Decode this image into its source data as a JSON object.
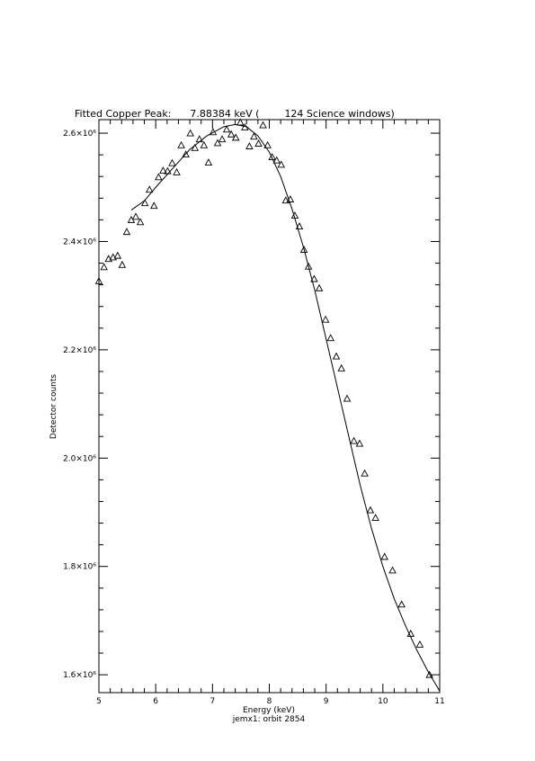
{
  "chart_data": {
    "type": "scatter",
    "title": "Fitted Copper Peak:      7.88384 keV (        124 Science windows)",
    "x_label": "Energy (keV)",
    "y_label": "Detector counts",
    "subtitle": "jemx1: orbit 2854",
    "xlim": [
      5,
      11
    ],
    "ylim": [
      1567000,
      2625000
    ],
    "xticks": [
      5,
      6,
      7,
      8,
      9,
      10,
      11
    ],
    "yticks": [
      {
        "value": 1600000,
        "label": "1.6×10⁶"
      },
      {
        "value": 1800000,
        "label": "1.8×10⁶"
      },
      {
        "value": 2000000,
        "label": "2.0×10⁶"
      },
      {
        "value": 2200000,
        "label": "2.2×10⁶"
      },
      {
        "value": 2400000,
        "label": "2.4×10⁶"
      },
      {
        "value": 2600000,
        "label": "2.6×10⁶"
      }
    ],
    "minor_divisions": 5,
    "color": "#000000",
    "points": {
      "x": [
        5.0,
        5.09,
        5.17,
        5.25,
        5.33,
        5.41,
        5.49,
        5.57,
        5.65,
        5.73,
        5.81,
        5.89,
        5.97,
        6.05,
        6.13,
        6.21,
        6.29,
        6.37,
        6.45,
        6.53,
        6.61,
        6.69,
        6.77,
        6.85,
        6.93,
        7.01,
        7.09,
        7.17,
        7.25,
        7.33,
        7.41,
        7.49,
        7.57,
        7.65,
        7.73,
        7.81,
        7.89,
        7.97,
        8.05,
        8.13,
        8.21,
        8.29,
        8.37,
        8.45,
        8.53,
        8.61,
        8.69,
        8.79,
        8.88,
        8.99,
        9.08,
        9.18,
        9.27,
        9.37,
        9.49,
        9.59,
        9.68,
        9.78,
        9.87,
        10.03,
        10.17,
        10.33,
        10.49,
        10.65,
        10.82
      ],
      "y": [
        2327000,
        2353000,
        2368000,
        2371000,
        2374000,
        2357000,
        2418000,
        2440000,
        2446000,
        2436000,
        2471000,
        2496000,
        2466000,
        2519000,
        2531000,
        2530000,
        2545000,
        2528000,
        2578000,
        2561000,
        2600000,
        2573000,
        2589000,
        2578000,
        2546000,
        2602000,
        2582000,
        2589000,
        2607000,
        2598000,
        2592000,
        2620000,
        2611000,
        2576000,
        2594000,
        2581000,
        2615000,
        2578000,
        2556000,
        2550000,
        2542000,
        2476000,
        2478000,
        2448000,
        2428000,
        2385000,
        2354000,
        2331000,
        2314000,
        2256000,
        2222000,
        2188000,
        2166000,
        2110000,
        2032000,
        2027000,
        1972000,
        1904000,
        1890000,
        1818000,
        1793000,
        1730000,
        1676000,
        1656000,
        1600000
      ]
    },
    "fit": {
      "x": [
        5.57,
        5.8,
        6.0,
        6.3,
        6.6,
        6.9,
        7.2,
        7.4,
        7.6,
        7.8,
        8.0,
        8.2,
        8.4,
        8.6,
        8.8,
        9.0,
        9.2,
        9.4,
        9.6,
        9.8,
        10.0,
        10.2,
        10.4,
        10.6,
        10.8,
        11.0
      ],
      "y": [
        2458000,
        2475000,
        2500000,
        2535000,
        2570000,
        2595000,
        2612000,
        2616000,
        2612000,
        2595000,
        2565000,
        2520000,
        2460000,
        2390000,
        2310000,
        2220000,
        2130000,
        2040000,
        1950000,
        1870000,
        1800000,
        1740000,
        1690000,
        1645000,
        1605000,
        1570000
      ]
    }
  }
}
